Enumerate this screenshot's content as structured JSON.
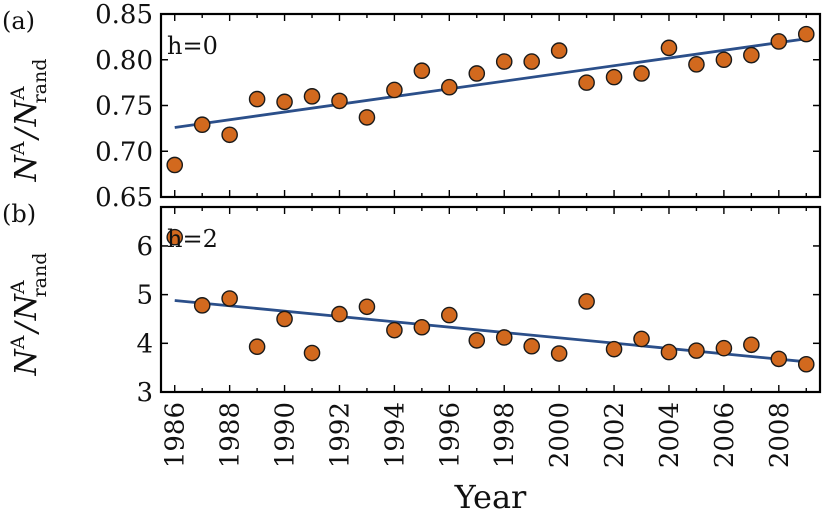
{
  "chart_data": [
    {
      "type": "scatter",
      "panel_label": "(a)",
      "annotation": "h=0",
      "ylabel": {
        "base": "N",
        "sup": "A",
        "sep": "/",
        "sub": "rand"
      },
      "xlabel": "Year",
      "ylim": [
        0.65,
        0.85
      ],
      "yticks": [
        "0.65",
        "0.70",
        "0.75",
        "0.80",
        "0.85"
      ],
      "ytick_values": [
        0.65,
        0.7,
        0.75,
        0.8,
        0.85
      ],
      "x": [
        1986,
        1987,
        1988,
        1989,
        1990,
        1991,
        1992,
        1993,
        1994,
        1995,
        1996,
        1997,
        1998,
        1999,
        2000,
        2001,
        2002,
        2003,
        2004,
        2005,
        2006,
        2007,
        2008,
        2009
      ],
      "y": [
        0.685,
        0.729,
        0.718,
        0.757,
        0.754,
        0.76,
        0.755,
        0.737,
        0.767,
        0.788,
        0.77,
        0.785,
        0.798,
        0.798,
        0.81,
        0.775,
        0.781,
        0.785,
        0.813,
        0.795,
        0.8,
        0.805,
        0.82,
        0.828
      ],
      "fit": {
        "x": [
          1986,
          2009
        ],
        "y": [
          0.726,
          0.823
        ]
      },
      "marker_color": "#d2691e",
      "line_color": "#2b4f8a"
    },
    {
      "type": "scatter",
      "panel_label": "(b)",
      "annotation": "h=2",
      "ylabel": {
        "base": "N",
        "sup": "A",
        "sep": "/",
        "sub": "rand"
      },
      "xlabel": "Year",
      "ylim": [
        3,
        6.8
      ],
      "yticks": [
        "3",
        "4",
        "5",
        "6"
      ],
      "ytick_values": [
        3,
        4,
        5,
        6
      ],
      "x": [
        1986,
        1987,
        1988,
        1989,
        1990,
        1991,
        1992,
        1993,
        1994,
        1995,
        1996,
        1997,
        1998,
        1999,
        2000,
        2001,
        2002,
        2003,
        2004,
        2005,
        2006,
        2007,
        2008,
        2009
      ],
      "y": [
        6.18,
        4.78,
        4.92,
        3.93,
        4.5,
        3.8,
        4.6,
        4.75,
        4.27,
        4.33,
        4.58,
        4.06,
        4.12,
        3.94,
        3.79,
        4.86,
        3.88,
        4.09,
        3.82,
        3.85,
        3.9,
        3.97,
        3.68,
        3.57
      ],
      "fit": {
        "x": [
          1986,
          2009
        ],
        "y": [
          4.88,
          3.62
        ]
      },
      "marker_color": "#d2691e",
      "line_color": "#2b4f8a"
    }
  ],
  "xaxis": {
    "title": "Year",
    "xlim": [
      1985.5,
      2009.5
    ],
    "tick_values": [
      1986,
      1987,
      1988,
      1989,
      1990,
      1991,
      1992,
      1993,
      1994,
      1995,
      1996,
      1997,
      1998,
      1999,
      2000,
      2001,
      2002,
      2003,
      2004,
      2005,
      2006,
      2007,
      2008,
      2009
    ],
    "tick_labels": [
      "1986",
      "1988",
      "1990",
      "1992",
      "1994",
      "1996",
      "1998",
      "2000",
      "2002",
      "2004",
      "2006",
      "2008"
    ],
    "tick_label_values": [
      1986,
      1988,
      1990,
      1992,
      1994,
      1996,
      1998,
      2000,
      2002,
      2004,
      2006,
      2008
    ]
  }
}
